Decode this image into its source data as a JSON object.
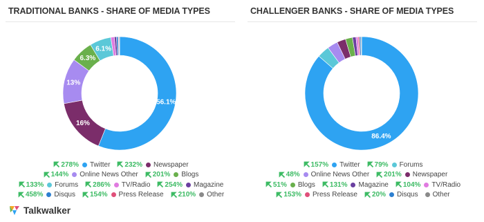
{
  "chart_data": [
    {
      "type": "pie",
      "donut": true,
      "title": "TRADITIONAL BANKS - SHARE OF MEDIA TYPES",
      "categories": [
        "Twitter",
        "Newspaper",
        "Online News Other",
        "Blogs",
        "Forums",
        "TV/Radio",
        "Magazine",
        "Disqus",
        "Press Release",
        "Other"
      ],
      "values": [
        56.1,
        16,
        13,
        6.3,
        6.1,
        1.0,
        0.6,
        0.5,
        0.2,
        0.2
      ],
      "value_labels": [
        "56.1%",
        "16%",
        "13%",
        "6.3%",
        "6.1%",
        null,
        null,
        null,
        null,
        null
      ],
      "colors": [
        "#2ea3f2",
        "#7b2d6a",
        "#a78bf0",
        "#6ab04c",
        "#5bc8d8",
        "#e07be0",
        "#6a3fa0",
        "#2d7fd0",
        "#e0507a",
        "#8a8a8a"
      ],
      "changes": [
        278,
        232,
        144,
        201,
        133,
        286,
        254,
        458,
        154,
        210
      ],
      "change_labels": [
        "278%",
        "232%",
        "144%",
        "201%",
        "133%",
        "286%",
        "254%",
        "458%",
        "154%",
        "210%"
      ]
    },
    {
      "type": "pie",
      "donut": true,
      "title": "CHALLENGER BANKS - SHARE OF MEDIA TYPES",
      "categories": [
        "Twitter",
        "Forums",
        "Online News Other",
        "Newspaper",
        "Blogs",
        "Magazine",
        "TV/Radio",
        "Press Release",
        "Disqus",
        "Other"
      ],
      "values": [
        86.4,
        3.5,
        3,
        2.5,
        2,
        1.0,
        0.6,
        0.4,
        0.4,
        0.2
      ],
      "value_labels": [
        "86.4%",
        null,
        null,
        null,
        null,
        null,
        null,
        null,
        null,
        null
      ],
      "colors": [
        "#2ea3f2",
        "#5bc8d8",
        "#a78bf0",
        "#7b2d6a",
        "#6ab04c",
        "#6a3fa0",
        "#e07be0",
        "#e0507a",
        "#2d7fd0",
        "#8a8a8a"
      ],
      "changes": [
        157,
        79,
        48,
        201,
        51,
        131,
        104,
        153,
        20,
        null
      ],
      "change_labels": [
        "157%",
        "79%",
        "48%",
        "201%",
        "51%",
        "131%",
        "104%",
        "153%",
        "20%",
        null
      ]
    }
  ],
  "footer": {
    "brand": "Talkwalker"
  }
}
